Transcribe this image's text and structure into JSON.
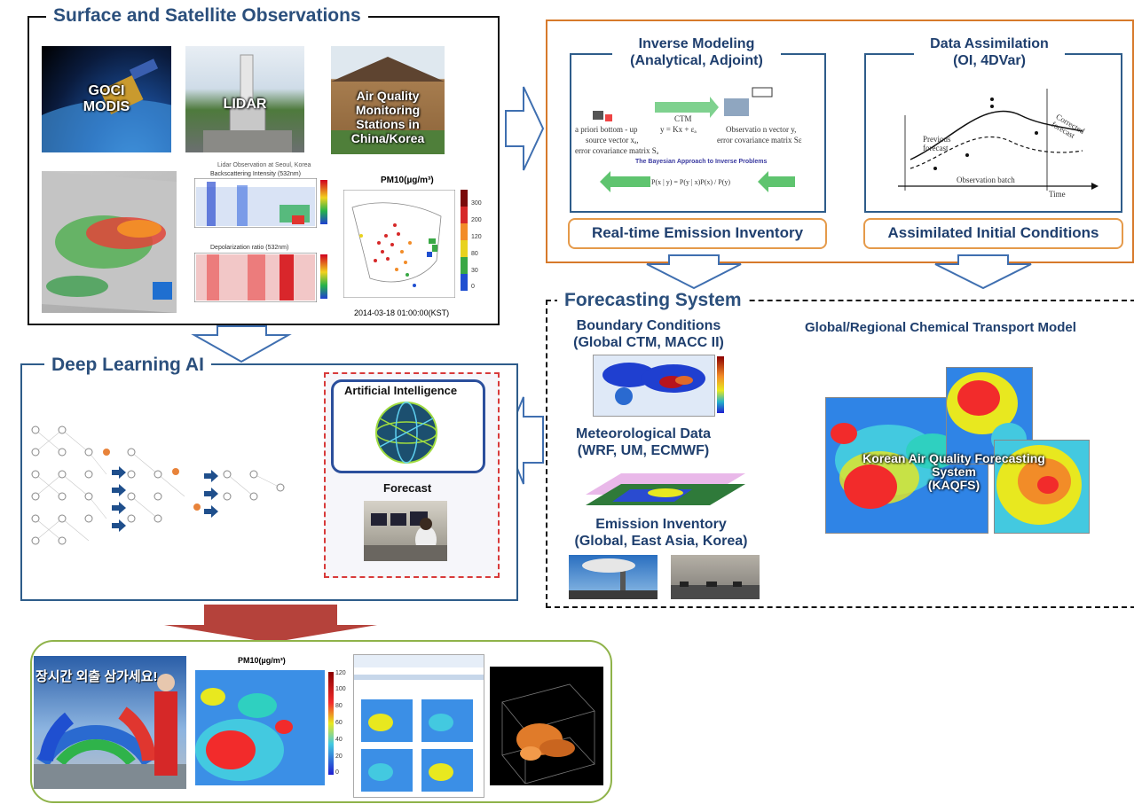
{
  "sections": {
    "observations": "Surface and Satellite Observations",
    "inverse_title": "Inverse Modeling",
    "inverse_sub": "(Analytical, Adjoint)",
    "assim_title": "Data Assimilation",
    "assim_sub": "(OI, 4DVar)",
    "realtime": "Real-time Emission Inventory",
    "assimilated": "Assimilated Initial Conditions",
    "forecasting": "Forecasting System",
    "deep_learning": "Deep Learning AI",
    "boundary": "Boundary Conditions",
    "boundary_sub": "(Global CTM, MACC II)",
    "met": "Meteorological Data",
    "met_sub": "(WRF, UM, ECMWF)",
    "emission": "Emission Inventory",
    "emission_sub": "(Global, East Asia, Korea)",
    "ctm": "Global/Regional Chemical Transport Model",
    "ai": "Artificial Intelligence",
    "forecast": "Forecast"
  },
  "photo_labels": {
    "goci": "GOCI\nMODIS",
    "lidar": "LIDAR",
    "station": "Air Quality\nMonitoring\nStations in\nChina/Korea",
    "kaqfs": "Korean Air Quality Forecasting\nSystem\n(KAQFS)"
  },
  "lidar_chart": {
    "title": "Lidar Observation at Seoul, Korea",
    "panel1": "Backscattering Intensity (532nm)",
    "panel2": "Depolarization ratio (532nm)"
  },
  "pm10_map": {
    "title": "PM10(µg/m³)",
    "timestamp": "2014-03-18 01:00:00(KST)",
    "scale": [
      "300",
      "200",
      "120",
      "80",
      "30",
      "0"
    ]
  },
  "pm10_forecast": {
    "title": "PM10(µg/m³)",
    "scale": [
      "120",
      "100",
      "80",
      "60",
      "40",
      "20",
      "0"
    ]
  },
  "inverse_diagram": {
    "apriori": "a priori bottom - up",
    "source_vec": "source vector xₐ,",
    "error_cov": "error covariance matrix Sₐ",
    "ctm": "CTM",
    "equation": "y = Kx + εₐ",
    "obs_vec": "Observatio n vector y,",
    "obs_err": "error covariance matrix Sε",
    "bayes": "The Bayesian Approach to Inverse Problems",
    "posterior": "P(x | y) = P(y | x)P(x) / P(y)"
  },
  "assim_diagram": {
    "previous": "Previous\nforecast",
    "corrected": "Corrected\nforecast",
    "batch": "Observation batch",
    "time": "Time"
  },
  "tv_banner": "장시간 외출 삼가세요!",
  "colors": {
    "section_title": "#2b4f7c",
    "orange": "#d77a2b",
    "green": "#8fb34a",
    "arrow_red": "#b5423b",
    "arrow_blue": "#3f6fb0"
  }
}
